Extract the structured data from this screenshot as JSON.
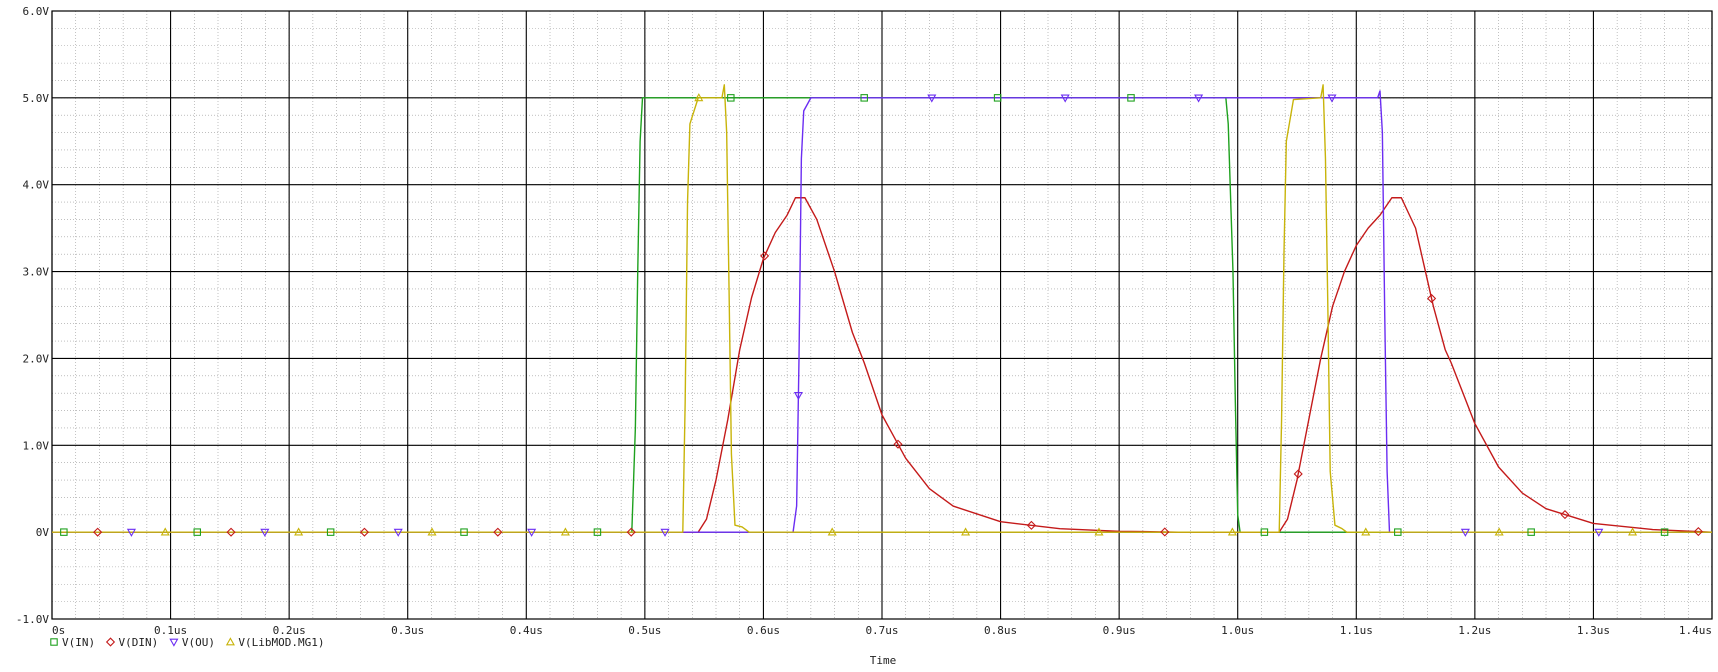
{
  "chart_data": {
    "type": "line",
    "title": "",
    "xlabel": "Time",
    "ylabel": "",
    "xlim": [
      0,
      1.4
    ],
    "ylim": [
      -1.0,
      6.0
    ],
    "grid": true,
    "legend_placement": "bottom-left",
    "x_ticks": [
      {
        "value": 0.0,
        "label": "0s"
      },
      {
        "value": 0.1,
        "label": "0.1us"
      },
      {
        "value": 0.2,
        "label": "0.2us"
      },
      {
        "value": 0.3,
        "label": "0.3us"
      },
      {
        "value": 0.4,
        "label": "0.4us"
      },
      {
        "value": 0.5,
        "label": "0.5us"
      },
      {
        "value": 0.6,
        "label": "0.6us"
      },
      {
        "value": 0.7,
        "label": "0.7us"
      },
      {
        "value": 0.8,
        "label": "0.8us"
      },
      {
        "value": 0.9,
        "label": "0.9us"
      },
      {
        "value": 1.0,
        "label": "1.0us"
      },
      {
        "value": 1.1,
        "label": "1.1us"
      },
      {
        "value": 1.2,
        "label": "1.2us"
      },
      {
        "value": 1.3,
        "label": "1.3us"
      },
      {
        "value": 1.4,
        "label": "1.4us"
      }
    ],
    "y_ticks": [
      {
        "value": 6.0,
        "label": "6.0V"
      },
      {
        "value": 5.0,
        "label": "5.0V"
      },
      {
        "value": 4.0,
        "label": "4.0V"
      },
      {
        "value": 3.0,
        "label": "3.0V"
      },
      {
        "value": 2.0,
        "label": "2.0V"
      },
      {
        "value": 1.0,
        "label": "1.0V"
      },
      {
        "value": 0.0,
        "label": "0V"
      },
      {
        "value": -1.0,
        "label": "-1.0V"
      }
    ],
    "series": [
      {
        "name": "V(IN)",
        "color": "#1ea11e",
        "marker": "square",
        "points": [
          [
            0,
            0
          ],
          [
            0.489,
            0
          ],
          [
            0.492,
            1.2
          ],
          [
            0.494,
            3.0
          ],
          [
            0.496,
            4.5
          ],
          [
            0.498,
            5.0
          ],
          [
            0.99,
            5.0
          ],
          [
            0.992,
            4.7
          ],
          [
            0.996,
            3.0
          ],
          [
            0.998,
            1.5
          ],
          [
            1.0,
            0.2
          ],
          [
            1.002,
            0
          ],
          [
            1.4,
            0
          ]
        ]
      },
      {
        "name": "V(DIN)",
        "color": "#c41a1a",
        "marker": "diamond",
        "points": [
          [
            0,
            0
          ],
          [
            0.545,
            0
          ],
          [
            0.552,
            0.15
          ],
          [
            0.56,
            0.6
          ],
          [
            0.57,
            1.3
          ],
          [
            0.58,
            2.1
          ],
          [
            0.59,
            2.7
          ],
          [
            0.6,
            3.15
          ],
          [
            0.61,
            3.45
          ],
          [
            0.62,
            3.65
          ],
          [
            0.627,
            3.85
          ],
          [
            0.635,
            3.85
          ],
          [
            0.645,
            3.6
          ],
          [
            0.66,
            3.0
          ],
          [
            0.675,
            2.3
          ],
          [
            0.685,
            1.95
          ],
          [
            0.69,
            1.75
          ],
          [
            0.7,
            1.35
          ],
          [
            0.72,
            0.85
          ],
          [
            0.74,
            0.5
          ],
          [
            0.76,
            0.3
          ],
          [
            0.8,
            0.12
          ],
          [
            0.85,
            0.04
          ],
          [
            0.9,
            0.01
          ],
          [
            0.95,
            0
          ],
          [
            1.035,
            0
          ],
          [
            1.042,
            0.15
          ],
          [
            1.05,
            0.6
          ],
          [
            1.06,
            1.3
          ],
          [
            1.07,
            2.0
          ],
          [
            1.08,
            2.6
          ],
          [
            1.09,
            3.0
          ],
          [
            1.1,
            3.3
          ],
          [
            1.11,
            3.5
          ],
          [
            1.12,
            3.65
          ],
          [
            1.13,
            3.85
          ],
          [
            1.138,
            3.85
          ],
          [
            1.15,
            3.5
          ],
          [
            1.165,
            2.6
          ],
          [
            1.175,
            2.1
          ],
          [
            1.18,
            1.95
          ],
          [
            1.19,
            1.6
          ],
          [
            1.2,
            1.25
          ],
          [
            1.22,
            0.75
          ],
          [
            1.24,
            0.45
          ],
          [
            1.26,
            0.27
          ],
          [
            1.3,
            0.1
          ],
          [
            1.35,
            0.03
          ],
          [
            1.4,
            0.0
          ]
        ]
      },
      {
        "name": "V(OU)",
        "color": "#6b2df2",
        "marker": "triangle-down",
        "points": [
          [
            0,
            0
          ],
          [
            0.625,
            0
          ],
          [
            0.628,
            0.3
          ],
          [
            0.63,
            2.0
          ],
          [
            0.632,
            4.3
          ],
          [
            0.634,
            4.85
          ],
          [
            0.64,
            5.0
          ],
          [
            1.118,
            5.0
          ],
          [
            1.12,
            5.08
          ],
          [
            1.122,
            4.6
          ],
          [
            1.124,
            2.5
          ],
          [
            1.126,
            0.7
          ],
          [
            1.128,
            0
          ],
          [
            1.4,
            0
          ]
        ]
      },
      {
        "name": "V(LibMOD.MG1)",
        "color": "#c8b40a",
        "marker": "triangle-up",
        "points": [
          [
            0,
            0
          ],
          [
            0.532,
            0
          ],
          [
            0.534,
            1.5
          ],
          [
            0.536,
            3.8
          ],
          [
            0.538,
            4.7
          ],
          [
            0.545,
            5.0
          ],
          [
            0.565,
            5.0
          ],
          [
            0.567,
            5.15
          ],
          [
            0.569,
            4.6
          ],
          [
            0.571,
            2.8
          ],
          [
            0.573,
            0.9
          ],
          [
            0.576,
            0.08
          ],
          [
            0.582,
            0.06
          ],
          [
            0.588,
            0
          ],
          [
            1.035,
            0
          ],
          [
            1.037,
            1.3
          ],
          [
            1.039,
            3.2
          ],
          [
            1.041,
            4.5
          ],
          [
            1.047,
            4.98
          ],
          [
            1.07,
            5.0
          ],
          [
            1.072,
            5.15
          ],
          [
            1.074,
            4.3
          ],
          [
            1.076,
            2.6
          ],
          [
            1.078,
            0.7
          ],
          [
            1.082,
            0.08
          ],
          [
            1.088,
            0.04
          ],
          [
            1.092,
            0
          ],
          [
            1.4,
            0
          ]
        ]
      }
    ]
  }
}
